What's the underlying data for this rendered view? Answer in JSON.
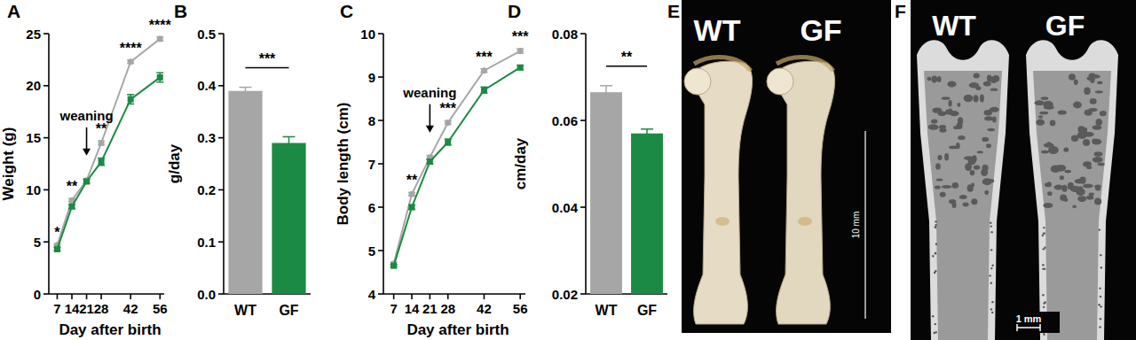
{
  "chart_data": [
    {
      "panel": "A",
      "type": "line",
      "x": [
        7,
        14,
        21,
        28,
        42,
        56
      ],
      "xlim": [
        3,
        58
      ],
      "xticks": [
        7,
        14,
        21,
        28,
        42,
        56
      ],
      "ylim": [
        0,
        25
      ],
      "yticks": [
        0,
        5,
        10,
        15,
        20,
        25
      ],
      "x_label": "Day after birth",
      "y_label": "Weight (g)",
      "series": [
        {
          "color": "#a6a6a6",
          "marker": "circle",
          "values": [
            4.7,
            9.0,
            10.9,
            14.5,
            22.3,
            24.5
          ],
          "errors": [
            0.1,
            0.15,
            0.15,
            0.2,
            0.15,
            0.2
          ]
        },
        {
          "color": "#1b8a44",
          "marker": "square",
          "values": [
            4.3,
            8.4,
            10.8,
            12.7,
            18.7,
            20.8
          ],
          "errors": [
            0.15,
            0.2,
            0.2,
            0.35,
            0.45,
            0.45
          ]
        }
      ],
      "significance": [
        "*",
        "**",
        null,
        "**",
        "****",
        "****"
      ],
      "annotations": [
        {
          "text": "weaning",
          "x": 21
        }
      ]
    },
    {
      "panel": "B",
      "type": "bar",
      "categories": [
        "WT",
        "GF"
      ],
      "values": [
        0.39,
        0.29
      ],
      "errors": [
        0.007,
        0.012
      ],
      "colors": [
        "#a6a6a6",
        "#1b8a44"
      ],
      "ylim": [
        0,
        0.5
      ],
      "yticks": [
        {
          "value": 0,
          "label": "0.0"
        },
        0.1,
        0.2,
        0.3,
        0.4,
        0.5
      ],
      "y_label": "g/day",
      "significance": "***"
    },
    {
      "panel": "C",
      "type": "line",
      "x": [
        7,
        14,
        21,
        28,
        42,
        56
      ],
      "xlim": [
        3,
        58
      ],
      "xticks": [
        7,
        14,
        21,
        28,
        42,
        56
      ],
      "ylim": [
        4,
        10
      ],
      "yticks": [
        4,
        5,
        6,
        7,
        8,
        9,
        10
      ],
      "x_label": "Day after birth",
      "y_label": "Body length (cm)",
      "series": [
        {
          "color": "#a6a6a6",
          "marker": "circle",
          "values": [
            4.7,
            6.3,
            7.15,
            7.95,
            9.15,
            9.6
          ],
          "errors": [
            0.03,
            0.04,
            0.04,
            0.04,
            0.04,
            0.05
          ]
        },
        {
          "color": "#1b8a44",
          "marker": "square",
          "values": [
            4.65,
            6.0,
            7.05,
            7.5,
            8.7,
            9.22
          ],
          "errors": [
            0.03,
            0.05,
            0.05,
            0.07,
            0.07,
            0.05
          ]
        }
      ],
      "significance": [
        null,
        "**",
        null,
        "***",
        "***",
        "***"
      ],
      "annotations": [
        {
          "text": "weaning",
          "x": 21
        }
      ]
    },
    {
      "panel": "D",
      "type": "bar",
      "categories": [
        "WT",
        "GF"
      ],
      "values": [
        0.0665,
        0.057
      ],
      "errors": [
        0.0015,
        0.001
      ],
      "colors": [
        "#a6a6a6",
        "#1b8a44"
      ],
      "ylim": [
        0.02,
        0.08
      ],
      "yticks": [
        0.02,
        0.04,
        0.06,
        0.08
      ],
      "y_label": "cm/day",
      "significance": "**"
    }
  ],
  "images": [
    {
      "panel": "E",
      "labels": [
        "WT",
        "GF"
      ],
      "scale_label": "10 mm"
    },
    {
      "panel": "F",
      "labels": [
        "WT",
        "GF"
      ],
      "scale_label": "1 mm"
    }
  ]
}
